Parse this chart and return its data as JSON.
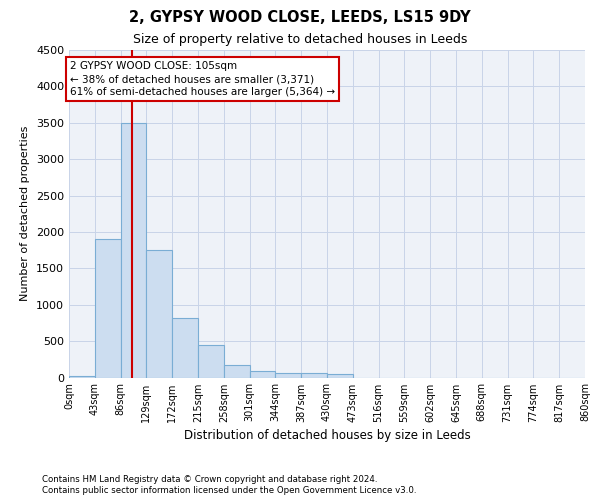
{
  "title": "2, GYPSY WOOD CLOSE, LEEDS, LS15 9DY",
  "subtitle": "Size of property relative to detached houses in Leeds",
  "xlabel": "Distribution of detached houses by size in Leeds",
  "ylabel": "Number of detached properties",
  "footnote1": "Contains HM Land Registry data © Crown copyright and database right 2024.",
  "footnote2": "Contains public sector information licensed under the Open Government Licence v3.0.",
  "bar_color": "#ccddf0",
  "bar_edge_color": "#7aadd4",
  "bar_edges": [
    0,
    43,
    86,
    129,
    172,
    215,
    258,
    301,
    344,
    387,
    430,
    473,
    516,
    559,
    602,
    645,
    688,
    731,
    774,
    817,
    860
  ],
  "bar_heights": [
    15,
    1900,
    3500,
    1750,
    820,
    450,
    165,
    95,
    65,
    55,
    45,
    0,
    0,
    0,
    0,
    0,
    0,
    0,
    0,
    0
  ],
  "tick_labels": [
    "0sqm",
    "43sqm",
    "86sqm",
    "129sqm",
    "172sqm",
    "215sqm",
    "258sqm",
    "301sqm",
    "344sqm",
    "387sqm",
    "430sqm",
    "473sqm",
    "516sqm",
    "559sqm",
    "602sqm",
    "645sqm",
    "688sqm",
    "731sqm",
    "774sqm",
    "817sqm",
    "860sqm"
  ],
  "ylim": [
    0,
    4500
  ],
  "yticks": [
    0,
    500,
    1000,
    1500,
    2000,
    2500,
    3000,
    3500,
    4000,
    4500
  ],
  "property_size": 105,
  "red_line_color": "#cc0000",
  "annotation_line1": "2 GYPSY WOOD CLOSE: 105sqm",
  "annotation_line2": "← 38% of detached houses are smaller (3,371)",
  "annotation_line3": "61% of semi-detached houses are larger (5,364) →",
  "annotation_box_color": "#ffffff",
  "annotation_box_edge": "#cc0000",
  "background_color": "#ffffff",
  "grid_color": "#c8d4e8",
  "plot_bg_color": "#eef2f8"
}
